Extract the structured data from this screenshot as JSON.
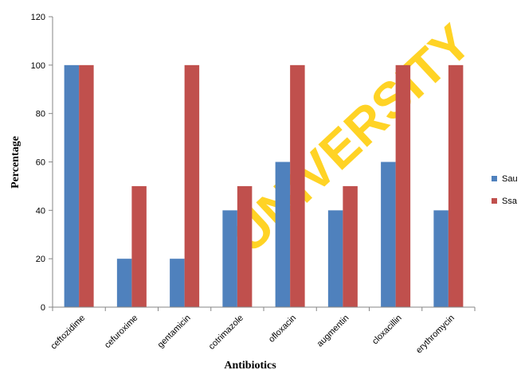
{
  "chart_data": {
    "type": "bar",
    "categories": [
      "ceftozidime",
      "cefuroxime",
      "gentamicin",
      "cotrimazole",
      "ofloxacin",
      "augmentin",
      "cloxacillin",
      "erythromycin"
    ],
    "series": [
      {
        "name": "Sau",
        "values": [
          100,
          20,
          20,
          40,
          60,
          40,
          60,
          40
        ],
        "color": "#4f81bd"
      },
      {
        "name": "Ssa",
        "values": [
          100,
          50,
          100,
          50,
          100,
          50,
          100,
          100
        ],
        "color": "#c0504d"
      }
    ],
    "title": "",
    "xlabel": "Antibiotics",
    "ylabel": "Percentage",
    "ylim": [
      0,
      120
    ],
    "yticks": [
      0,
      20,
      40,
      60,
      80,
      100,
      120
    ],
    "grid": false,
    "legend_position": "right"
  },
  "watermark": {
    "text": "UNIVERSITY",
    "color": "#ffcc00"
  }
}
